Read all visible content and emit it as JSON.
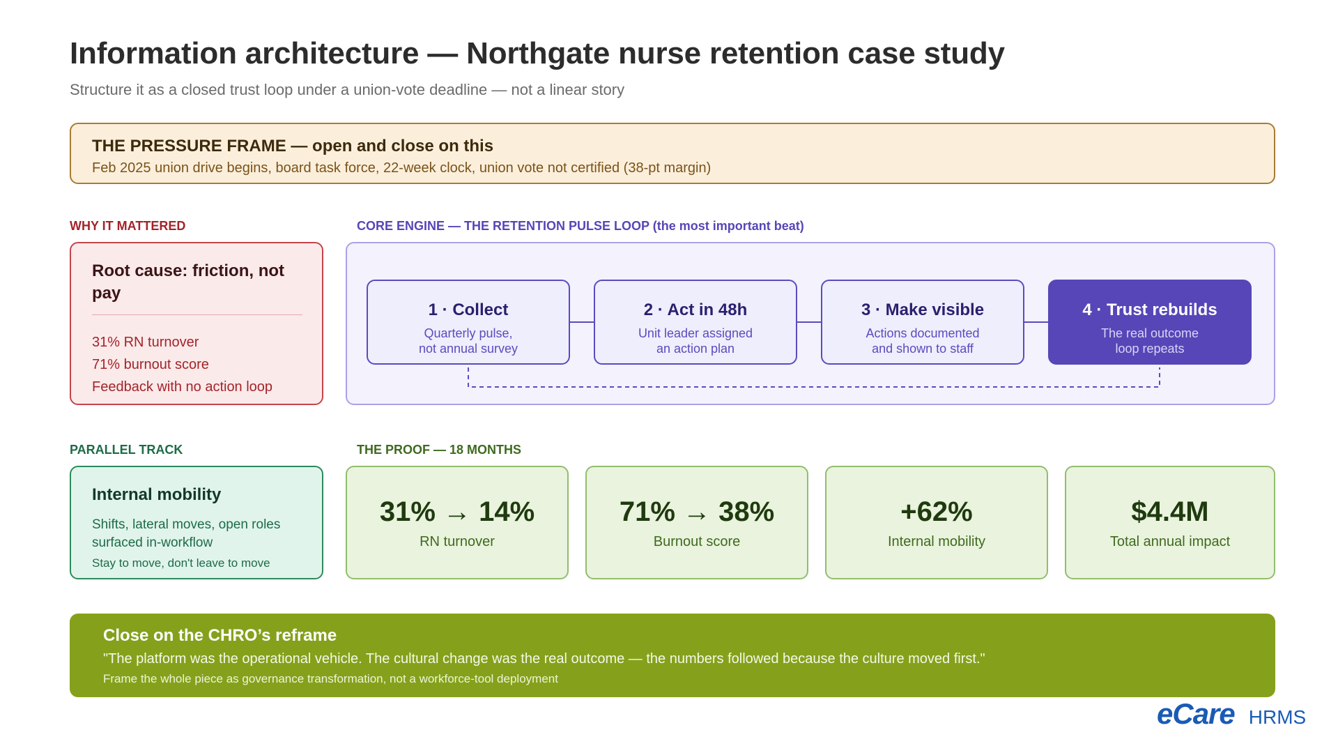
{
  "header": {
    "title": "Information architecture — Northgate nurse retention case study",
    "subtitle": "Structure it as a closed trust loop under a union-vote deadline — not a linear story"
  },
  "pressure_frame": {
    "title": "THE PRESSURE FRAME — open and close on this",
    "body": "Feb 2025 union drive begins, board task force, 22-week clock, union vote not certified (38-pt margin)"
  },
  "why": {
    "label": "WHY IT MATTERED",
    "title": "Root cause: friction, not pay",
    "items": [
      "31% RN turnover",
      "71% burnout score",
      "Feedback with no action loop"
    ]
  },
  "core": {
    "label": "CORE ENGINE — THE RETENTION PULSE LOOP (the most important beat)",
    "steps": [
      {
        "title": "1 · Collect",
        "line1": "Quarterly pulse,",
        "line2": "not annual survey"
      },
      {
        "title": "2 · Act in 48h",
        "line1": "Unit leader assigned",
        "line2": "an action plan"
      },
      {
        "title": "3 · Make visible",
        "line1": "Actions documented",
        "line2": "and shown to staff"
      },
      {
        "title": "4 · Trust rebuilds",
        "line1": "The real outcome",
        "line2": "loop repeats"
      }
    ]
  },
  "parallel": {
    "label": "PARALLEL TRACK",
    "title": "Internal mobility",
    "desc": "Shifts, lateral moves, open roles surfaced in-workflow",
    "note": "Stay to move, don't leave to move"
  },
  "proof": {
    "label": "THE PROOF — 18 MONTHS",
    "metrics": [
      {
        "value": "31% → 14%",
        "label": "RN turnover"
      },
      {
        "value": "71% → 38%",
        "label": "Burnout score"
      },
      {
        "value": "+62%",
        "label": "Internal mobility"
      },
      {
        "value": "$4.4M",
        "label": "Total annual impact"
      }
    ]
  },
  "close": {
    "title": "Close on the CHRO’s reframe",
    "quote": "\"The platform was the operational vehicle. The cultural change was the real outcome — the numbers followed because the culture moved first.\"",
    "note": "Frame the whole piece as governance transformation, not a workforce-tool deployment"
  },
  "logo": {
    "brand": "eCare",
    "product": "HRMS"
  },
  "colors": {
    "pressure": "#a87b34",
    "why": "#c4444c",
    "core": "#5646b7",
    "parallel": "#2d8a5c",
    "proof": "#93bd6d",
    "close": "#85a11c"
  }
}
